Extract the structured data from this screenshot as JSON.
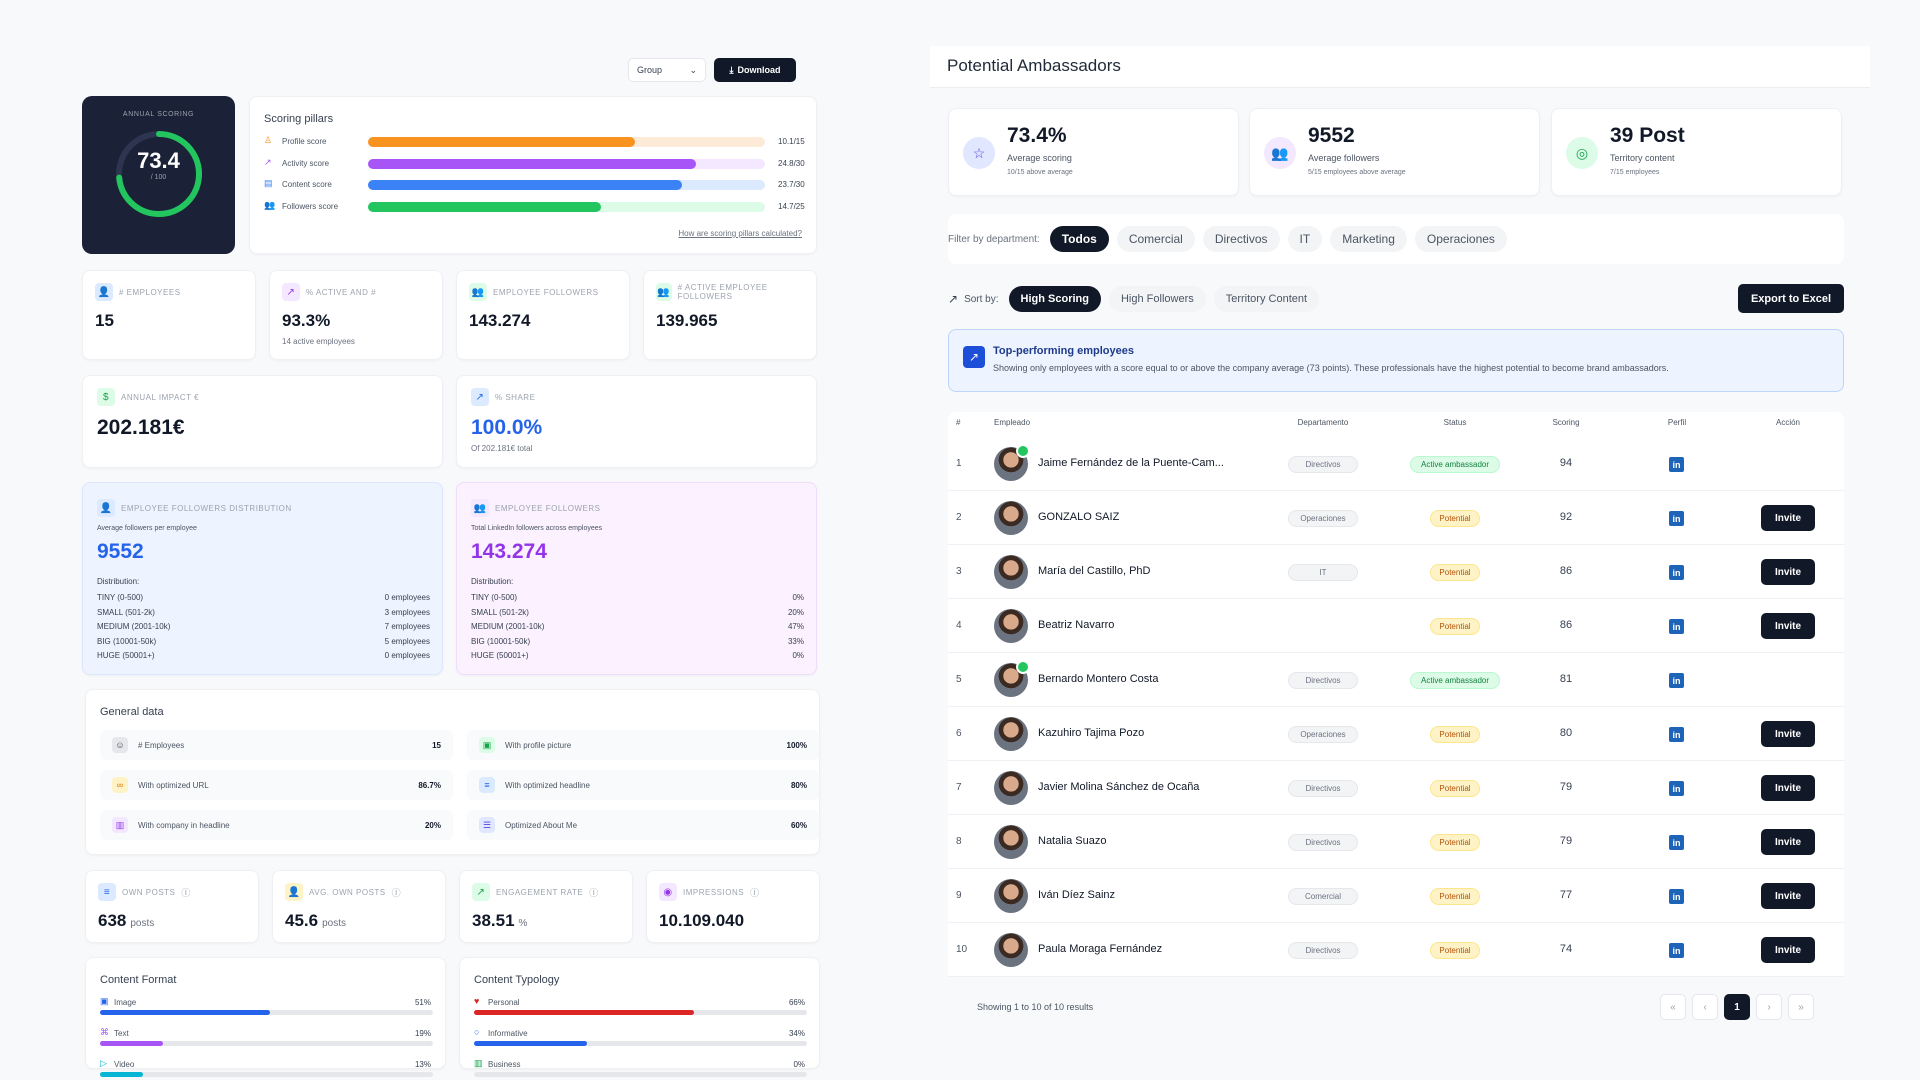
{
  "left": {
    "group_select": "Group",
    "download_label": "Download",
    "annual_scoring": {
      "label": "ANNUAL SCORING",
      "value": "73.4",
      "max": "/ 100",
      "fraction": 0.734
    },
    "pillars": {
      "title": "Scoring pillars",
      "items": [
        {
          "label": "Profile score",
          "value": "10.1/15",
          "fraction": 0.673,
          "color": "#f7931e",
          "track": "#fdebd7"
        },
        {
          "label": "Activity score",
          "value": "24.8/30",
          "fraction": 0.827,
          "color": "#a855f7",
          "track": "#f3e8ff"
        },
        {
          "label": "Content score",
          "value": "23.7/30",
          "fraction": 0.79,
          "color": "#3b82f6",
          "track": "#dbeafe"
        },
        {
          "label": "Followers score",
          "value": "14.7/25",
          "fraction": 0.588,
          "color": "#22c55e",
          "track": "#dcfce7"
        }
      ],
      "link": "How are scoring pillars calculated?"
    },
    "stats": [
      {
        "label": "# EMPLOYEES",
        "value": "15",
        "sub": ""
      },
      {
        "label": "% ACTIVE AND #",
        "value": "93.3%",
        "sub": "14 active employees"
      },
      {
        "label": "EMPLOYEE FOLLOWERS",
        "value": "143.274",
        "sub": ""
      },
      {
        "label": "# ACTIVE EMPLOYEE FOLLOWERS",
        "value": "139.965",
        "sub": ""
      }
    ],
    "impact": {
      "label": "ANNUAL IMPACT €",
      "value": "202.181€"
    },
    "share": {
      "label": "% SHARE",
      "value": "100.0%",
      "sub": "Of 202.181€ total"
    },
    "dist_left": {
      "label": "EMPLOYEE FOLLOWERS DISTRIBUTION",
      "sub": "Average followers per employee",
      "value": "9552",
      "dist_title": "Distribution:",
      "rows": [
        {
          "k": "TINY (0-500)",
          "v": "0 employees"
        },
        {
          "k": "SMALL (501-2k)",
          "v": "3 employees"
        },
        {
          "k": "MEDIUM (2001-10k)",
          "v": "7 employees"
        },
        {
          "k": "BIG (10001-50k)",
          "v": "5 employees"
        },
        {
          "k": "HUGE (50001+)",
          "v": "0 employees"
        }
      ]
    },
    "dist_right": {
      "label": "EMPLOYEE FOLLOWERS",
      "sub": "Total LinkedIn followers across employees",
      "value": "143.274",
      "dist_title": "Distribution:",
      "rows": [
        {
          "k": "TINY (0-500)",
          "v": "0%"
        },
        {
          "k": "SMALL (501-2k)",
          "v": "20%"
        },
        {
          "k": "MEDIUM (2001-10k)",
          "v": "47%"
        },
        {
          "k": "BIG (10001-50k)",
          "v": "33%"
        },
        {
          "k": "HUGE (50001+)",
          "v": "0%"
        }
      ]
    },
    "general": {
      "title": "General data",
      "items": [
        {
          "label": "# Employees",
          "value": "15"
        },
        {
          "label": "With profile picture",
          "value": "100%"
        },
        {
          "label": "With optimized URL",
          "value": "86.7%"
        },
        {
          "label": "With optimized headline",
          "value": "80%"
        },
        {
          "label": "With company in headline",
          "value": "20%"
        },
        {
          "label": "Optimized About Me",
          "value": "60%"
        }
      ]
    },
    "posts": [
      {
        "label": "OWN POSTS",
        "value": "638",
        "unit": "posts"
      },
      {
        "label": "AVG. OWN POSTS",
        "value": "45.6",
        "unit": "posts"
      },
      {
        "label": "ENGAGEMENT RATE",
        "value": "38.51",
        "unit": "%"
      },
      {
        "label": "IMPRESSIONS",
        "value": "10.109.040",
        "unit": ""
      }
    ],
    "format": {
      "title": "Content Format",
      "items": [
        {
          "label": "Image",
          "value": "51%",
          "fraction": 0.51,
          "color": "#2563eb"
        },
        {
          "label": "Text",
          "value": "19%",
          "fraction": 0.19,
          "color": "#a855f7"
        },
        {
          "label": "Video",
          "value": "13%",
          "fraction": 0.13,
          "color": "#06b6d4"
        }
      ]
    },
    "typology": {
      "title": "Content Typology",
      "items": [
        {
          "label": "Personal",
          "value": "66%",
          "fraction": 0.66,
          "color": "#dc2626"
        },
        {
          "label": "Informative",
          "value": "34%",
          "fraction": 0.34,
          "color": "#2563eb"
        },
        {
          "label": "Business",
          "value": "0%",
          "fraction": 0,
          "color": "#16a34a"
        }
      ]
    }
  },
  "right": {
    "title": "Potential Ambassadors",
    "kpis": [
      {
        "value": "73.4%",
        "label": "Average scoring",
        "sub": "10/15 above average"
      },
      {
        "value": "9552",
        "label": "Average followers",
        "sub": "5/15 employees above average"
      },
      {
        "value": "39 Post",
        "label": "Territory content",
        "sub": "7/15 employees"
      }
    ],
    "filter_label": "Filter by department:",
    "filters": [
      "Todos",
      "Comercial",
      "Directivos",
      "IT",
      "Marketing",
      "Operaciones"
    ],
    "sort_label": "Sort by:",
    "sorts": [
      "High Scoring",
      "High Followers",
      "Territory Content"
    ],
    "export_label": "Export to Excel",
    "banner": {
      "title": "Top-performing employees",
      "text": "Showing only employees with a score equal to or above the company average (73 points). These professionals have the highest potential to become brand ambassadors."
    },
    "headers": [
      "#",
      "Empleado",
      "Departamento",
      "Status",
      "Scoring",
      "Perfil",
      "Acción"
    ],
    "rows": [
      {
        "n": "1",
        "name": "Jaime Fernández de la Puente-Cam...",
        "dept": "Directivos",
        "status": "Active ambassador",
        "score": "94",
        "action": ""
      },
      {
        "n": "2",
        "name": "GONZALO SAIZ",
        "dept": "Operaciones",
        "status": "Potential",
        "score": "92",
        "action": "Invite"
      },
      {
        "n": "3",
        "name": "María del Castillo, PhD",
        "dept": "IT",
        "status": "Potential",
        "score": "86",
        "action": "Invite"
      },
      {
        "n": "4",
        "name": "Beatriz Navarro",
        "dept": "",
        "status": "Potential",
        "score": "86",
        "action": "Invite"
      },
      {
        "n": "5",
        "name": "Bernardo Montero Costa",
        "dept": "Directivos",
        "status": "Active ambassador",
        "score": "81",
        "action": ""
      },
      {
        "n": "6",
        "name": "Kazuhiro Tajima Pozo",
        "dept": "Operaciones",
        "status": "Potential",
        "score": "80",
        "action": "Invite"
      },
      {
        "n": "7",
        "name": "Javier Molina Sánchez de Ocaña",
        "dept": "Directivos",
        "status": "Potential",
        "score": "79",
        "action": "Invite"
      },
      {
        "n": "8",
        "name": "Natalia Suazo",
        "dept": "Directivos",
        "status": "Potential",
        "score": "79",
        "action": "Invite"
      },
      {
        "n": "9",
        "name": "Iván Díez Sainz",
        "dept": "Comercial",
        "status": "Potential",
        "score": "77",
        "action": "Invite"
      },
      {
        "n": "10",
        "name": "Paula Moraga Fernández",
        "dept": "Directivos",
        "status": "Potential",
        "score": "74",
        "action": "Invite"
      }
    ],
    "footer": "Showing 1 to 10 of 10 results",
    "pagination": {
      "first": "«",
      "prev": "‹",
      "current": "1",
      "next": "›",
      "last": "»"
    }
  }
}
